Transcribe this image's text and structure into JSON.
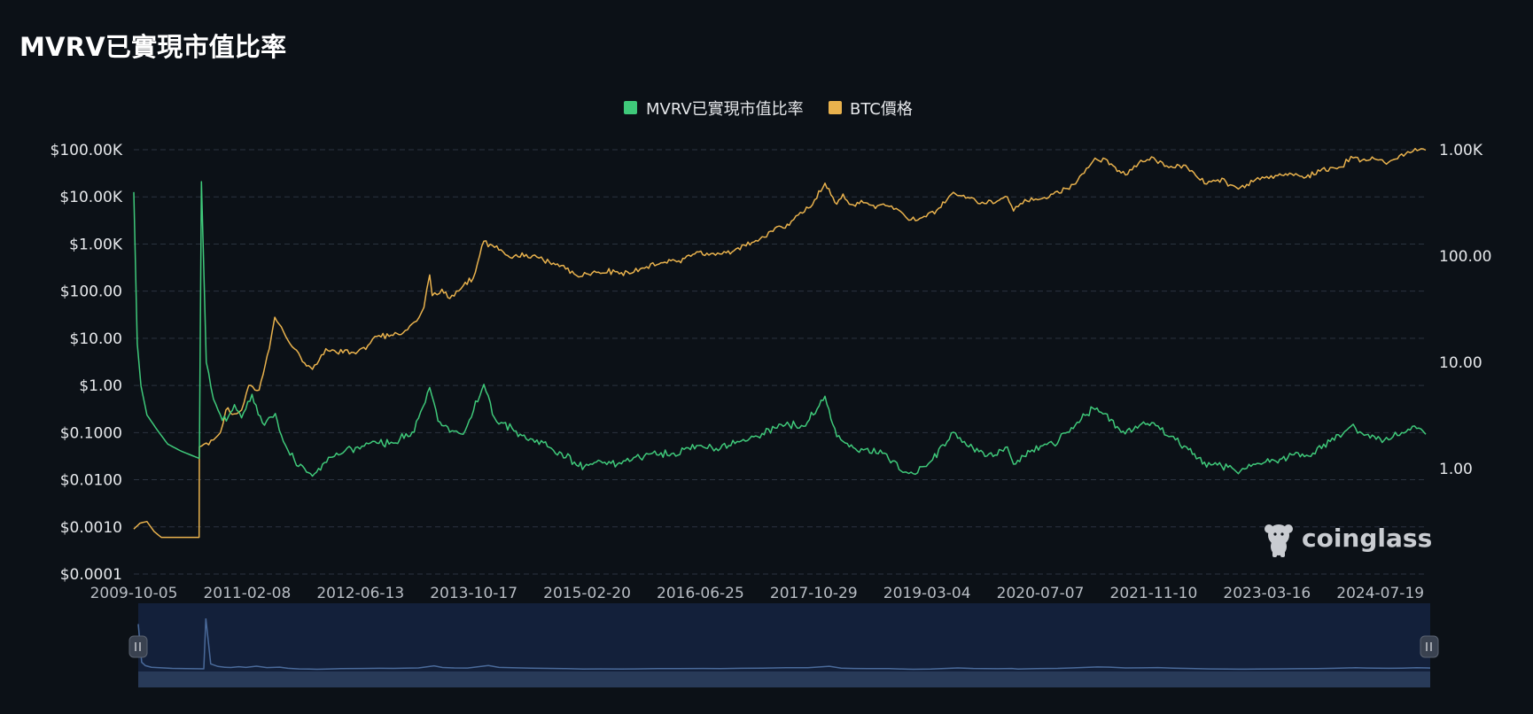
{
  "page": {
    "title": "MVRV已實現市值比率"
  },
  "watermark": {
    "text": "coinglass",
    "icon": "coinglass-logo-icon"
  },
  "colors": {
    "background": "#0c1117",
    "mvrv": "#3fc97a",
    "btc": "#e9b24d",
    "grid": "#2b3340",
    "navigator_fill": "#13203a"
  },
  "chart_data": {
    "type": "line",
    "legend_position": "top-center",
    "grid": true,
    "y_left": {
      "scale": "log",
      "range": [
        0.0001,
        100000
      ],
      "ticks": [
        "$0.0001",
        "$0.0010",
        "$0.0100",
        "$0.1000",
        "$1.00",
        "$10.00",
        "$100.00",
        "$1.00K",
        "$10.00K",
        "$100.00K"
      ]
    },
    "y_right": {
      "scale": "log",
      "range": [
        0.1,
        1000
      ],
      "ticks": [
        "1.00",
        "10.00",
        "100.00",
        "1.00K"
      ]
    },
    "x_ticks": [
      "2009-10-05",
      "2011-02-08",
      "2012-06-13",
      "2013-10-17",
      "2015-02-20",
      "2016-06-25",
      "2017-10-29",
      "2019-03-04",
      "2020-07-07",
      "2021-11-10",
      "2023-03-16",
      "2024-07-19"
    ],
    "x_range": [
      "2009-10-05",
      "2025-02-01"
    ],
    "series": [
      {
        "name": "MVRV已實現市值比率",
        "axis": "right",
        "x": [
          "2009-10-05",
          "2009-10-20",
          "2009-11-05",
          "2009-12-01",
          "2010-01-15",
          "2010-03-01",
          "2010-05-01",
          "2010-07-15",
          "2010-07-16",
          "2010-07-25",
          "2010-08-15",
          "2010-09-15",
          "2010-10-15",
          "2010-11-10",
          "2010-12-15",
          "2011-01-15",
          "2011-03-01",
          "2011-04-15",
          "2011-06-10",
          "2011-07-15",
          "2011-09-01",
          "2011-10-15",
          "2011-11-18",
          "2012-01-01",
          "2012-03-01",
          "2012-06-01",
          "2012-08-15",
          "2012-10-15",
          "2012-12-01",
          "2013-02-01",
          "2013-04-09",
          "2013-05-15",
          "2013-07-05",
          "2013-09-01",
          "2013-11-30",
          "2014-01-15",
          "2014-04-01",
          "2014-06-01",
          "2014-08-15",
          "2014-11-01",
          "2015-01-14",
          "2015-04-01",
          "2015-07-01",
          "2015-09-01",
          "2015-12-01",
          "2016-03-01",
          "2016-06-18",
          "2016-09-01",
          "2016-12-01",
          "2017-03-01",
          "2017-06-10",
          "2017-09-15",
          "2017-12-17",
          "2018-02-06",
          "2018-04-01",
          "2018-06-01",
          "2018-09-01",
          "2018-11-20",
          "2018-12-15",
          "2019-03-01",
          "2019-06-26",
          "2019-09-01",
          "2019-12-15",
          "2020-02-15",
          "2020-03-13",
          "2020-06-01",
          "2020-09-01",
          "2020-11-01",
          "2021-02-20",
          "2021-04-14",
          "2021-06-22",
          "2021-09-01",
          "2021-11-10",
          "2022-01-15",
          "2022-04-01",
          "2022-06-18",
          "2022-09-01",
          "2022-11-21",
          "2023-01-15",
          "2023-04-15",
          "2023-07-01",
          "2023-10-01",
          "2023-12-15",
          "2024-03-14",
          "2024-05-01",
          "2024-08-05",
          "2024-10-01",
          "2024-12-05",
          "2025-01-20",
          "2025-02-01"
        ],
        "values": [
          400,
          15,
          6,
          3.2,
          2.3,
          1.7,
          1.45,
          1.25,
          1.3,
          500,
          10,
          4.5,
          3.2,
          2.8,
          4,
          3,
          5,
          2.7,
          3.3,
          1.8,
          1.2,
          1.0,
          0.85,
          1.1,
          1.4,
          1.6,
          1.8,
          1.7,
          1.9,
          2.2,
          5.8,
          2.8,
          2.2,
          2.1,
          6.2,
          3.0,
          2.4,
          1.9,
          1.75,
          1.4,
          1.05,
          1.15,
          1.1,
          1.2,
          1.4,
          1.4,
          1.65,
          1.55,
          1.8,
          2.0,
          2.6,
          2.5,
          4.8,
          2.0,
          1.6,
          1.5,
          1.4,
          0.92,
          0.9,
          1.05,
          2.2,
          1.6,
          1.3,
          1.6,
          1.1,
          1.5,
          1.7,
          2.2,
          3.7,
          3.3,
          2.2,
          2.4,
          2.7,
          2.0,
          1.6,
          1.15,
          1.05,
          0.95,
          1.1,
          1.2,
          1.35,
          1.4,
          1.8,
          2.5,
          2.15,
          1.85,
          2.05,
          2.5,
          2.25,
          2.1
        ]
      },
      {
        "name": "BTC價格",
        "axis": "left",
        "x": [
          "2009-10-05",
          "2009-11-01",
          "2009-12-01",
          "2010-01-01",
          "2010-02-01",
          "2010-03-01",
          "2010-04-01",
          "2010-05-01",
          "2010-06-01",
          "2010-07-15",
          "2010-07-16",
          "2010-08-15",
          "2010-09-15",
          "2010-10-15",
          "2010-11-08",
          "2010-12-15",
          "2011-01-15",
          "2011-02-15",
          "2011-04-01",
          "2011-05-15",
          "2011-06-08",
          "2011-07-15",
          "2011-09-01",
          "2011-10-15",
          "2011-11-18",
          "2012-01-15",
          "2012-03-01",
          "2012-05-15",
          "2012-07-15",
          "2012-08-15",
          "2012-10-15",
          "2012-12-15",
          "2013-02-01",
          "2013-03-15",
          "2013-04-09",
          "2013-04-20",
          "2013-06-01",
          "2013-07-05",
          "2013-09-01",
          "2013-10-15",
          "2013-11-30",
          "2014-01-15",
          "2014-04-01",
          "2014-06-01",
          "2014-08-15",
          "2014-11-01",
          "2015-01-14",
          "2015-04-01",
          "2015-07-01",
          "2015-09-01",
          "2015-11-05",
          "2016-01-15",
          "2016-03-15",
          "2016-06-18",
          "2016-08-01",
          "2016-10-15",
          "2016-12-31",
          "2017-03-01",
          "2017-05-15",
          "2017-07-15",
          "2017-09-01",
          "2017-10-15",
          "2017-12-17",
          "2018-02-06",
          "2018-03-05",
          "2018-04-01",
          "2018-06-01",
          "2018-08-01",
          "2018-10-01",
          "2018-11-20",
          "2018-12-15",
          "2019-02-01",
          "2019-04-15",
          "2019-06-26",
          "2019-08-01",
          "2019-10-01",
          "2019-12-15",
          "2020-02-15",
          "2020-03-13",
          "2020-05-01",
          "2020-07-15",
          "2020-09-01",
          "2020-11-01",
          "2020-12-15",
          "2021-02-20",
          "2021-04-14",
          "2021-06-22",
          "2021-07-20",
          "2021-09-06",
          "2021-11-10",
          "2022-01-15",
          "2022-03-28",
          "2022-05-12",
          "2022-06-18",
          "2022-08-15",
          "2022-11-21",
          "2023-01-15",
          "2023-03-15",
          "2023-05-01",
          "2023-07-01",
          "2023-09-01",
          "2023-11-01",
          "2023-12-15",
          "2024-02-01",
          "2024-03-14",
          "2024-05-01",
          "2024-07-01",
          "2024-08-05",
          "2024-10-01",
          "2024-11-15",
          "2024-12-17",
          "2025-01-20",
          "2025-02-01"
        ],
        "values": [
          0.0009,
          0.0012,
          0.0013,
          0.0008,
          0.0006,
          0.0006,
          0.0006,
          0.0006,
          0.0006,
          0.0006,
          0.05,
          0.06,
          0.07,
          0.1,
          0.3,
          0.25,
          0.3,
          1.0,
          0.8,
          6,
          28,
          14,
          6,
          3,
          2.2,
          6,
          5,
          5,
          7,
          11,
          11,
          13,
          22,
          45,
          220,
          80,
          110,
          70,
          130,
          190,
          1150,
          850,
          500,
          600,
          450,
          350,
          200,
          250,
          260,
          240,
          330,
          400,
          420,
          680,
          580,
          650,
          960,
          1150,
          2200,
          2500,
          4700,
          6000,
          19500,
          7000,
          11500,
          7000,
          7500,
          6500,
          6400,
          4400,
          3200,
          3500,
          5200,
          12500,
          10500,
          8300,
          7200,
          10000,
          5000,
          8800,
          9200,
          11500,
          15000,
          22000,
          57000,
          64000,
          32000,
          30000,
          52000,
          68000,
          42000,
          47000,
          28000,
          19000,
          23000,
          16000,
          21000,
          27000,
          28000,
          30500,
          26000,
          35000,
          42000,
          43000,
          72000,
          60000,
          62000,
          54000,
          64000,
          91000,
          106000,
          104000,
          98000
        ]
      }
    ]
  },
  "navigator": {
    "left_handle": "drag-handle-icon",
    "right_handle": "drag-handle-icon"
  }
}
